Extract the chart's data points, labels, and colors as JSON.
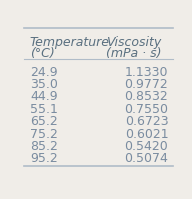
{
  "col1_header": [
    "Temperature",
    "(°C)"
  ],
  "col2_header": [
    "Viscosity",
    "(mPa · s)"
  ],
  "temperatures": [
    "24.9",
    "35.0",
    "44.9",
    "55.1",
    "65.2",
    "75.2",
    "85.2",
    "95.2"
  ],
  "viscosities": [
    "1.1330",
    "0.9772",
    "0.8532",
    "0.7550",
    "0.6723",
    "0.6021",
    "0.5420",
    "0.5074"
  ],
  "bg_color": "#f0ede8",
  "text_color": "#7a8ca0",
  "header_color": "#5a7080",
  "line_color": "#b0bcc8",
  "font_size": 9,
  "header_font_size": 9
}
